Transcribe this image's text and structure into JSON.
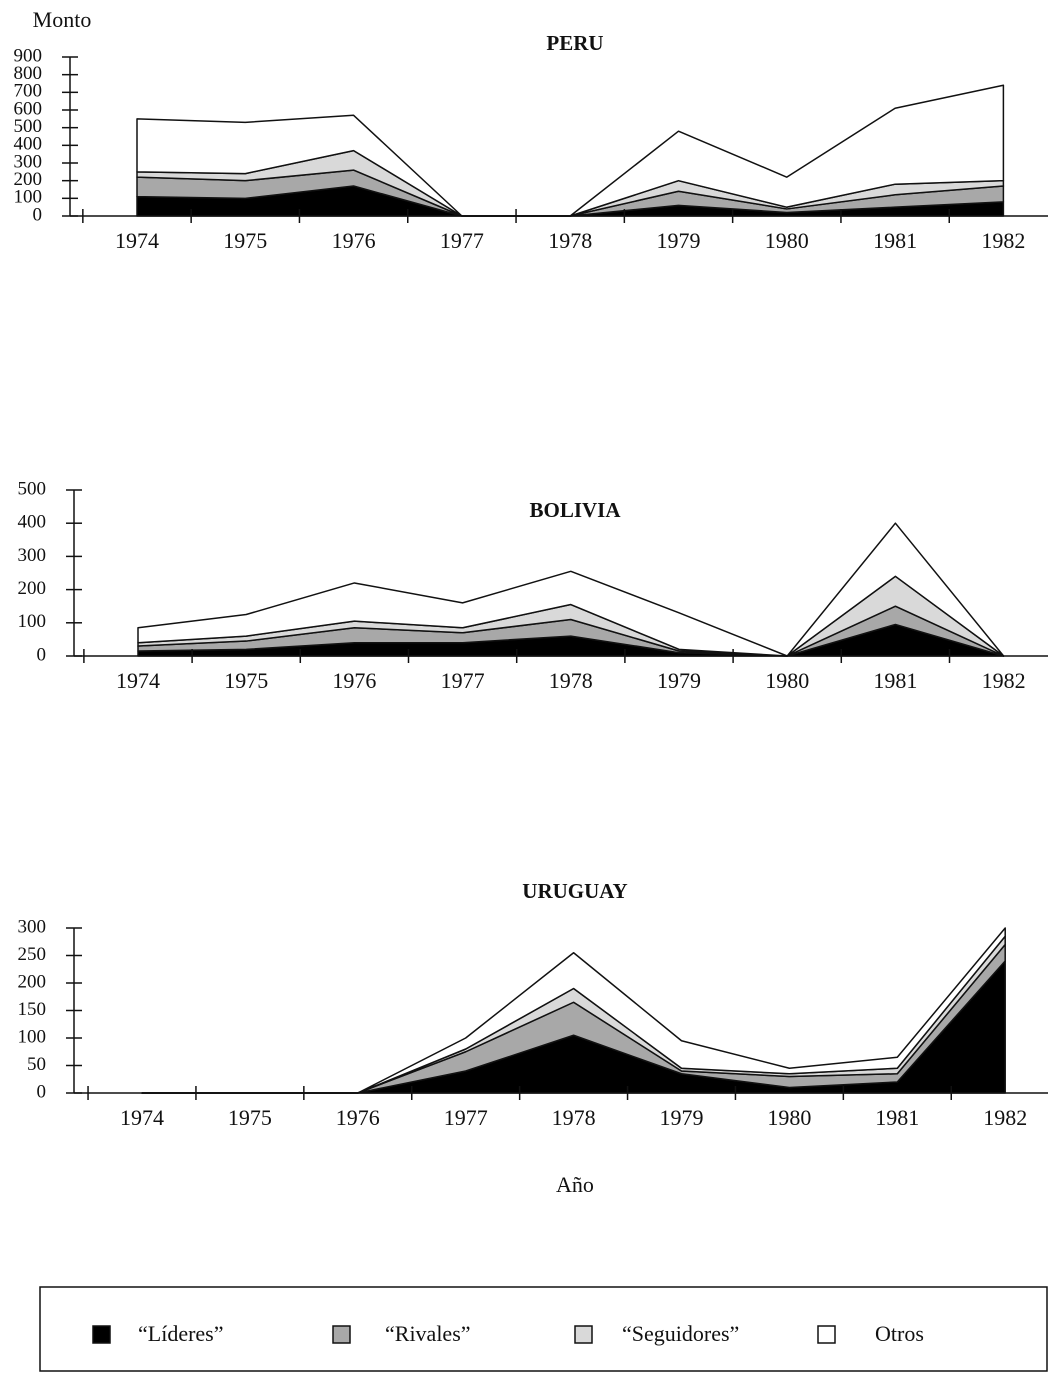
{
  "chart_data": [
    {
      "type": "area",
      "title": "PERU",
      "ylabel": "Monto",
      "categories": [
        "1974",
        "1975",
        "1976",
        "1977",
        "1978",
        "1979",
        "1980",
        "1981",
        "1982"
      ],
      "series": [
        {
          "name": "“Líderes”",
          "color": "#000000",
          "values": [
            110,
            100,
            170,
            0,
            0,
            60,
            20,
            50,
            80
          ]
        },
        {
          "name": "“Rivales”",
          "color": "#a8a8a8",
          "values": [
            110,
            100,
            90,
            0,
            0,
            80,
            20,
            70,
            90
          ]
        },
        {
          "name": "“Seguidores”",
          "color": "#d9d9d9",
          "values": [
            30,
            40,
            110,
            0,
            0,
            60,
            10,
            60,
            30
          ]
        },
        {
          "name": "Otros",
          "color": "#ffffff",
          "values": [
            300,
            290,
            200,
            0,
            0,
            280,
            170,
            430,
            540
          ]
        }
      ],
      "ylim": [
        0,
        900
      ],
      "yticks": [
        0,
        100,
        200,
        300,
        400,
        500,
        600,
        700,
        800,
        900
      ]
    },
    {
      "type": "area",
      "title": "BOLIVIA",
      "categories": [
        "1974",
        "1975",
        "1976",
        "1977",
        "1978",
        "1979",
        "1980",
        "1981",
        "1982"
      ],
      "series": [
        {
          "name": "“Líderes”",
          "color": "#000000",
          "values": [
            15,
            20,
            40,
            40,
            60,
            10,
            0,
            95,
            0
          ]
        },
        {
          "name": "“Rivales”",
          "color": "#a8a8a8",
          "values": [
            15,
            25,
            45,
            30,
            50,
            5,
            0,
            55,
            0
          ]
        },
        {
          "name": "“Seguidores”",
          "color": "#d9d9d9",
          "values": [
            10,
            15,
            20,
            15,
            45,
            5,
            0,
            90,
            0
          ]
        },
        {
          "name": "Otros",
          "color": "#ffffff",
          "values": [
            45,
            65,
            115,
            75,
            100,
            110,
            0,
            160,
            0
          ]
        }
      ],
      "ylim": [
        0,
        500
      ],
      "yticks": [
        0,
        100,
        200,
        300,
        400,
        500
      ]
    },
    {
      "type": "area",
      "title": "URUGUAY",
      "xlabel": "Año",
      "categories": [
        "1974",
        "1975",
        "1976",
        "1977",
        "1978",
        "1979",
        "1980",
        "1981",
        "1982"
      ],
      "series": [
        {
          "name": "“Líderes”",
          "color": "#000000",
          "values": [
            0,
            0,
            0,
            40,
            105,
            35,
            10,
            20,
            240
          ]
        },
        {
          "name": "“Rivales”",
          "color": "#a8a8a8",
          "values": [
            0,
            0,
            0,
            35,
            60,
            5,
            20,
            15,
            30
          ]
        },
        {
          "name": "“Seguidores”",
          "color": "#d9d9d9",
          "values": [
            0,
            0,
            0,
            5,
            25,
            5,
            5,
            10,
            15
          ]
        },
        {
          "name": "Otros",
          "color": "#ffffff",
          "values": [
            0,
            0,
            0,
            20,
            65,
            50,
            10,
            20,
            15
          ]
        }
      ],
      "ylim": [
        0,
        300
      ],
      "yticks": [
        0,
        50,
        100,
        150,
        200,
        250,
        300
      ]
    }
  ]
}
